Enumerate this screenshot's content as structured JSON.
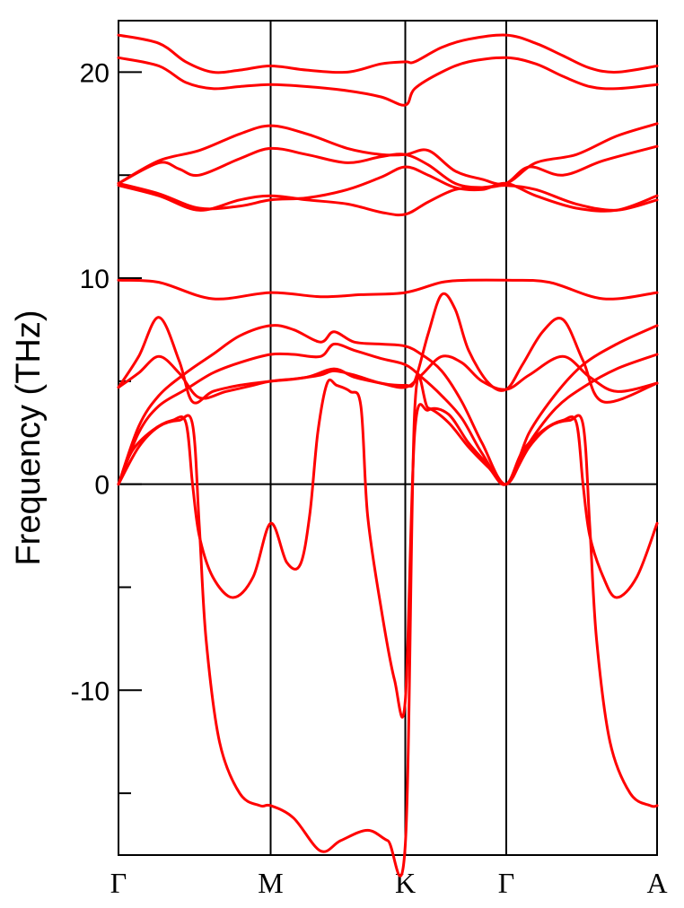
{
  "chart_data": {
    "type": "line",
    "title": "",
    "ylabel": "Frequency (THz)",
    "xlabel": "",
    "xlim": [
      0,
      4
    ],
    "ylim": [
      -18,
      22.5
    ],
    "y_major_ticks": [
      -10,
      0,
      10,
      20
    ],
    "y_tick_labels": [
      "-10",
      "0",
      "10",
      "20"
    ],
    "y_minor_ticks": [
      -15,
      -5,
      5,
      15
    ],
    "grid": false,
    "legend": "none",
    "line_color": "#ff0000",
    "high_symmetry_points": [
      {
        "label": "Γ",
        "x": 0
      },
      {
        "label": "M",
        "x": 1.13
      },
      {
        "label": "K",
        "x": 2.13
      },
      {
        "label": "Γ",
        "x": 2.88
      },
      {
        "label": "A",
        "x": 4
      }
    ],
    "series": [
      {
        "x": [
          0,
          0.3,
          0.5,
          0.7,
          0.9,
          1.13,
          1.4,
          1.7,
          1.95,
          2.13,
          2.2,
          2.4,
          2.6,
          2.88,
          3.1,
          3.3,
          3.5,
          3.7,
          4
        ],
        "y": [
          21.8,
          21.4,
          20.5,
          20.0,
          20.1,
          20.3,
          20.1,
          20.0,
          20.4,
          20.5,
          20.5,
          21.2,
          21.6,
          21.8,
          21.4,
          20.8,
          20.2,
          20.0,
          20.3
        ]
      },
      {
        "x": [
          0,
          0.3,
          0.5,
          0.7,
          0.9,
          1.13,
          1.4,
          1.7,
          1.95,
          2.13,
          2.2,
          2.4,
          2.6,
          2.88,
          3.1,
          3.3,
          3.5,
          3.7,
          4
        ],
        "y": [
          20.7,
          20.3,
          19.5,
          19.2,
          19.3,
          19.4,
          19.3,
          19.1,
          18.8,
          18.4,
          19.2,
          20.0,
          20.5,
          20.7,
          20.4,
          19.8,
          19.3,
          19.2,
          19.4
        ]
      },
      {
        "x": [
          0,
          0.3,
          0.6,
          0.9,
          1.13,
          1.4,
          1.7,
          1.95,
          2.13,
          2.3,
          2.5,
          2.7,
          2.88,
          3.1,
          3.4,
          3.7,
          4
        ],
        "y": [
          14.6,
          15.7,
          16.2,
          17.0,
          17.4,
          17.0,
          16.3,
          16.0,
          16.0,
          16.2,
          15.2,
          14.8,
          14.6,
          15.6,
          16.0,
          16.9,
          17.5
        ]
      },
      {
        "x": [
          0,
          0.3,
          0.45,
          0.6,
          0.9,
          1.13,
          1.4,
          1.7,
          1.95,
          2.13,
          2.3,
          2.5,
          2.7,
          2.88,
          3.05,
          3.3,
          3.6,
          4
        ],
        "y": [
          14.6,
          15.6,
          15.3,
          15.0,
          15.8,
          16.3,
          16.0,
          15.6,
          15.9,
          16.0,
          15.5,
          14.6,
          14.4,
          14.6,
          15.4,
          15.0,
          15.7,
          16.4
        ]
      },
      {
        "x": [
          0,
          0.3,
          0.6,
          0.9,
          1.13,
          1.4,
          1.7,
          1.95,
          2.13,
          2.3,
          2.5,
          2.7,
          2.88,
          3.1,
          3.4,
          3.7,
          4
        ],
        "y": [
          14.6,
          14.1,
          13.4,
          13.5,
          13.8,
          13.9,
          14.3,
          14.9,
          15.4,
          15.0,
          14.4,
          14.3,
          14.6,
          14.0,
          13.4,
          13.3,
          14.0
        ]
      },
      {
        "x": [
          0,
          0.3,
          0.6,
          0.9,
          1.13,
          1.4,
          1.7,
          1.95,
          2.13,
          2.3,
          2.5,
          2.7,
          2.88,
          3.1,
          3.4,
          3.7,
          4
        ],
        "y": [
          14.5,
          14.0,
          13.3,
          13.8,
          14.0,
          13.8,
          13.6,
          13.2,
          13.1,
          13.7,
          14.3,
          14.4,
          14.5,
          14.3,
          13.6,
          13.3,
          13.8
        ]
      },
      {
        "x": [
          0,
          0.3,
          0.7,
          1.13,
          1.5,
          1.8,
          2.13,
          2.4,
          2.6,
          2.88,
          3.2,
          3.6,
          4
        ],
        "y": [
          9.9,
          9.8,
          9.0,
          9.3,
          9.1,
          9.2,
          9.3,
          9.8,
          9.9,
          9.9,
          9.8,
          9.0,
          9.3
        ]
      },
      {
        "x": [
          0,
          0.15,
          0.3,
          0.45,
          0.55,
          0.7,
          0.9,
          1.13,
          1.3,
          1.5,
          1.6,
          1.75,
          1.95,
          2.13,
          2.2,
          2.3,
          2.4,
          2.5,
          2.6,
          2.75,
          2.88,
          3.0,
          3.15,
          3.3,
          3.45,
          3.6,
          4
        ],
        "y": [
          4.7,
          6.2,
          8.1,
          6.0,
          4.0,
          4.5,
          4.8,
          5.0,
          5.1,
          5.3,
          5.5,
          5.3,
          4.9,
          4.8,
          5.0,
          7.3,
          9.2,
          8.5,
          6.5,
          4.9,
          4.6,
          5.8,
          7.4,
          8.0,
          6.0,
          4.0,
          4.9
        ]
      },
      {
        "x": [
          0,
          0.15,
          0.3,
          0.45,
          0.6,
          0.8,
          1.0,
          1.13,
          1.4,
          1.6,
          1.75,
          1.95,
          2.13,
          2.25,
          2.4,
          2.55,
          2.7,
          2.88,
          3.05,
          3.3,
          3.5,
          3.7,
          4
        ],
        "y": [
          4.7,
          5.4,
          6.2,
          5.4,
          4.2,
          4.5,
          4.8,
          5.0,
          5.2,
          5.6,
          5.2,
          4.9,
          4.7,
          5.3,
          6.2,
          5.9,
          5.0,
          4.6,
          5.3,
          6.2,
          5.2,
          4.5,
          4.9
        ]
      },
      {
        "x": [
          0,
          0.15,
          0.3,
          0.5,
          0.7,
          0.9,
          1.13,
          1.3,
          1.5,
          1.6,
          1.75,
          1.95,
          2.13,
          2.25,
          2.4,
          2.55,
          2.7,
          2.88,
          3.05,
          3.25,
          3.45,
          3.7,
          4
        ],
        "y": [
          0,
          2.8,
          4.3,
          5.4,
          6.3,
          7.2,
          7.7,
          7.5,
          6.9,
          7.4,
          6.9,
          6.8,
          6.7,
          6.3,
          5.5,
          4.0,
          2.0,
          0,
          2.5,
          4.4,
          5.8,
          6.8,
          7.7
        ]
      },
      {
        "x": [
          0,
          0.15,
          0.3,
          0.5,
          0.7,
          0.9,
          1.13,
          1.3,
          1.5,
          1.6,
          1.75,
          1.95,
          2.13,
          2.25,
          2.4,
          2.55,
          2.7,
          2.88,
          3.05,
          3.25,
          3.45,
          3.7,
          4
        ],
        "y": [
          0,
          2.5,
          3.8,
          4.6,
          5.4,
          5.9,
          6.3,
          6.3,
          6.2,
          6.8,
          6.5,
          6.1,
          5.8,
          5.2,
          4.3,
          3.2,
          1.5,
          0,
          2.0,
          3.7,
          4.7,
          5.6,
          6.3
        ]
      },
      {
        "x": [
          0,
          0.1,
          0.25,
          0.4,
          0.5,
          0.55,
          0.6,
          0.7,
          0.85,
          1.0,
          1.13,
          1.25,
          1.35,
          1.42,
          1.48,
          1.55,
          1.62,
          1.72,
          1.8,
          1.85,
          1.95,
          2.05,
          2.13,
          2.2,
          2.3,
          2.45,
          2.6,
          2.75,
          2.88,
          3.0,
          3.15,
          3.3,
          3.4,
          3.45,
          3.5,
          3.6,
          3.7,
          3.85,
          4
        ],
        "y": [
          0,
          1.6,
          2.6,
          3.1,
          3.0,
          0,
          -2.5,
          -4.5,
          -5.5,
          -4.5,
          -1.9,
          -3.8,
          -3.9,
          -1.5,
          2.5,
          4.9,
          4.8,
          4.5,
          3.8,
          -1.5,
          -6.0,
          -9.5,
          -10.5,
          2.5,
          3.6,
          3.4,
          2.0,
          0.9,
          0,
          1.6,
          2.6,
          3.1,
          3.0,
          0,
          -2.5,
          -4.5,
          -5.5,
          -4.5,
          -1.9
        ]
      },
      {
        "x": [
          0,
          0.15,
          0.3,
          0.45,
          0.55,
          0.6,
          0.65,
          0.75,
          0.9,
          1.05,
          1.13,
          1.3,
          1.5,
          1.65,
          1.85,
          2.0,
          2.13,
          2.2,
          2.3,
          2.45,
          2.6,
          2.75,
          2.88,
          3.05,
          3.2,
          3.35,
          3.45,
          3.5,
          3.55,
          3.65,
          3.8,
          3.95,
          4
        ],
        "y": [
          0,
          1.8,
          2.8,
          3.1,
          2.9,
          -2.0,
          -7.5,
          -12.5,
          -15.0,
          -15.6,
          -15.6,
          -16.2,
          -17.8,
          -17.3,
          -16.8,
          -17.3,
          -17.5,
          3.6,
          3.7,
          3.0,
          1.8,
          0.8,
          0,
          1.8,
          2.8,
          3.1,
          2.9,
          -2.0,
          -7.5,
          -12.5,
          -15.0,
          -15.6,
          -15.6
        ]
      }
    ]
  }
}
